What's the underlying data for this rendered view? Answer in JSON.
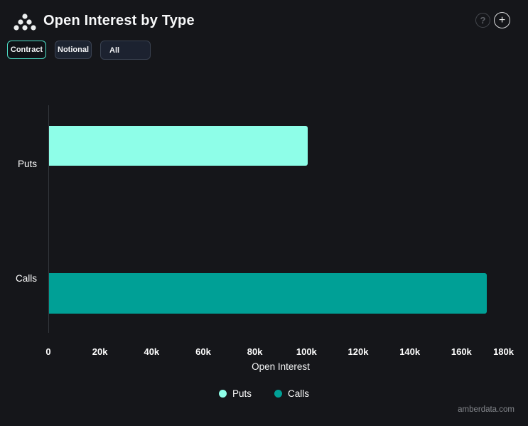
{
  "header": {
    "title": "Open Interest by Type",
    "help_glyph": "?",
    "add_glyph": "+"
  },
  "toolbar": {
    "contract_label": "Contract",
    "notional_label": "Notional",
    "all_label": "All",
    "active_button": "Contract",
    "accent_color": "#4EE0C8"
  },
  "chart_data": {
    "type": "bar",
    "orientation": "horizontal",
    "title": "Open Interest by Type",
    "categories": [
      "Puts",
      "Calls"
    ],
    "values": [
      100300,
      169500
    ],
    "colors": [
      "#8EFEE8",
      "#00A096"
    ],
    "xlabel": "Open Interest",
    "ylabel": "",
    "xlim": [
      0,
      180000
    ],
    "xtick_labels": [
      "0",
      "20k",
      "40k",
      "60k",
      "80k",
      "100k",
      "120k",
      "140k",
      "160k",
      "180k"
    ],
    "xtick_values": [
      0,
      20000,
      40000,
      60000,
      80000,
      100000,
      120000,
      140000,
      160000,
      180000
    ],
    "grid": false,
    "legend_position": "bottom"
  },
  "legend": {
    "items": [
      {
        "label": "Puts",
        "color": "#8EFEE8"
      },
      {
        "label": "Calls",
        "color": "#00A096"
      }
    ]
  },
  "footer": {
    "watermark": "amberdata.com"
  }
}
